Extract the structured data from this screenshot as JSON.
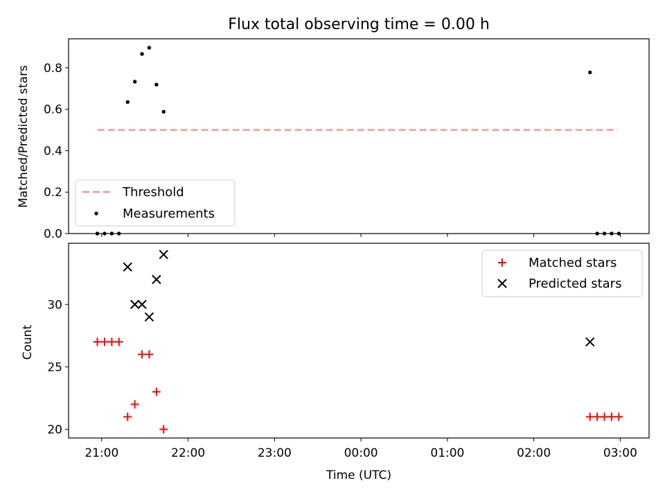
{
  "chart_data": [
    {
      "type": "scatter",
      "title": "Flux total observing time = 0.00 h",
      "xlabel": "",
      "ylabel": "Matched/Predicted stars",
      "ylim": [
        0,
        0.94
      ],
      "xlim": [
        "20:37",
        "03:20"
      ],
      "yticks": [
        0.0,
        0.2,
        0.4,
        0.6,
        0.8
      ],
      "ytick_labels": [
        "0.0",
        "0.2",
        "0.4",
        "0.6",
        "0.8"
      ],
      "grid": false,
      "legend_position": "lower-left",
      "legend": [
        "Threshold",
        "Measurements"
      ],
      "series": [
        {
          "name": "Threshold",
          "kind": "dashed-line",
          "color": "#ff7f7f",
          "x": [
            "20:57",
            "02:58"
          ],
          "y": [
            0.5,
            0.5
          ]
        },
        {
          "name": "Measurements",
          "kind": "dot",
          "color": "#000000",
          "x": [
            "20:57",
            "21:02",
            "21:07",
            "21:12",
            "21:18",
            "21:23",
            "21:28",
            "21:33",
            "21:38",
            "21:43",
            "02:39",
            "02:44",
            "02:49",
            "02:54",
            "02:59"
          ],
          "y": [
            0.0,
            0.0,
            0.0,
            0.0,
            0.635,
            0.733,
            0.867,
            0.897,
            0.719,
            0.588,
            0.778,
            0.0,
            0.0,
            0.0,
            0.0
          ]
        }
      ]
    },
    {
      "type": "scatter",
      "title": "",
      "xlabel": "Time (UTC)",
      "ylabel": "Count",
      "ylim": [
        19.3,
        34.9
      ],
      "xlim": [
        "20:37",
        "03:20"
      ],
      "yticks": [
        20,
        25,
        30
      ],
      "ytick_labels": [
        "20",
        "25",
        "30"
      ],
      "xticks": [
        "21:00",
        "22:00",
        "23:00",
        "00:00",
        "01:00",
        "02:00",
        "03:00"
      ],
      "grid": false,
      "legend_position": "top-right",
      "legend": [
        "Matched stars",
        "Predicted stars"
      ],
      "series": [
        {
          "name": "Matched stars",
          "marker": "plus",
          "color": "#ff0000",
          "x": [
            "20:57",
            "21:02",
            "21:07",
            "21:12",
            "21:18",
            "21:23",
            "21:28",
            "21:33",
            "21:38",
            "21:43",
            "02:39",
            "02:44",
            "02:49",
            "02:54",
            "02:59"
          ],
          "y": [
            27,
            27,
            27,
            27,
            21,
            22,
            26,
            26,
            23,
            20,
            21,
            21,
            21,
            21,
            21
          ]
        },
        {
          "name": "Predicted stars",
          "marker": "x",
          "color": "#000000",
          "x": [
            "21:18",
            "21:23",
            "21:28",
            "21:33",
            "21:38",
            "21:43",
            "02:39"
          ],
          "y": [
            33,
            30,
            30,
            29,
            32,
            34,
            27
          ]
        }
      ]
    }
  ]
}
